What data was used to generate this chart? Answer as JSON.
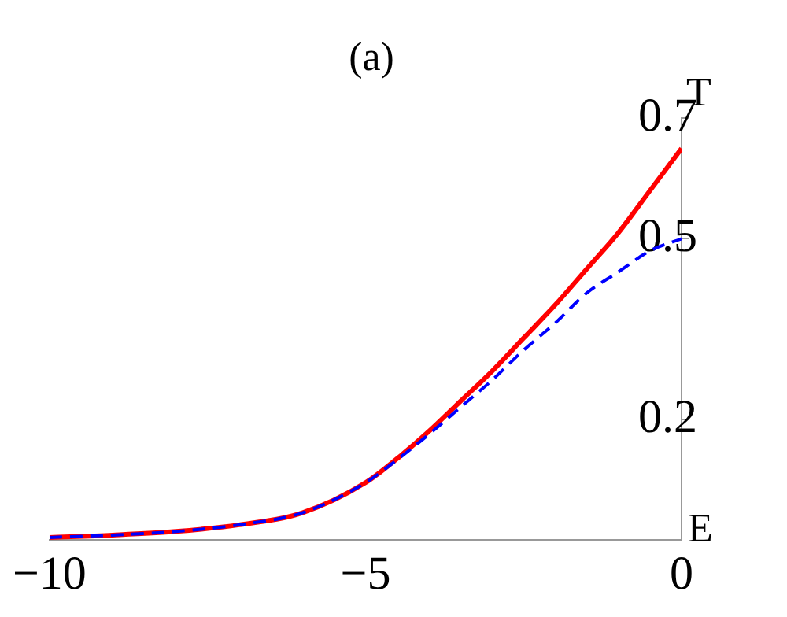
{
  "chart_data": {
    "type": "line",
    "title": "(a)",
    "xlabel": "E",
    "ylabel": "T",
    "x": [
      -10,
      -9,
      -8,
      -7,
      -6,
      -5,
      -4.5,
      -4,
      -3.5,
      -3,
      -2.5,
      -2,
      -1.5,
      -1,
      -0.5,
      0
    ],
    "series": [
      {
        "color": "#ff0000",
        "line_style": "solid",
        "values": [
          0.004,
          0.008,
          0.014,
          0.025,
          0.045,
          0.095,
          0.135,
          0.18,
          0.23,
          0.28,
          0.335,
          0.39,
          0.45,
          0.51,
          0.58,
          0.65
        ]
      },
      {
        "color": "#0000ff",
        "line_style": "dashed",
        "values": [
          0.004,
          0.008,
          0.014,
          0.025,
          0.045,
          0.095,
          0.133,
          0.175,
          0.22,
          0.265,
          0.315,
          0.36,
          0.41,
          0.445,
          0.48,
          0.5
        ]
      }
    ],
    "xlim": [
      -10,
      0
    ],
    "ylim": [
      0,
      0.7
    ],
    "xticks": [
      {
        "value": -10,
        "label": "−10"
      },
      {
        "value": -5,
        "label": "−5"
      },
      0
    ],
    "yticks": [
      0.2,
      0.5,
      0.7
    ],
    "grid": false,
    "legend": false,
    "marker": "none"
  }
}
